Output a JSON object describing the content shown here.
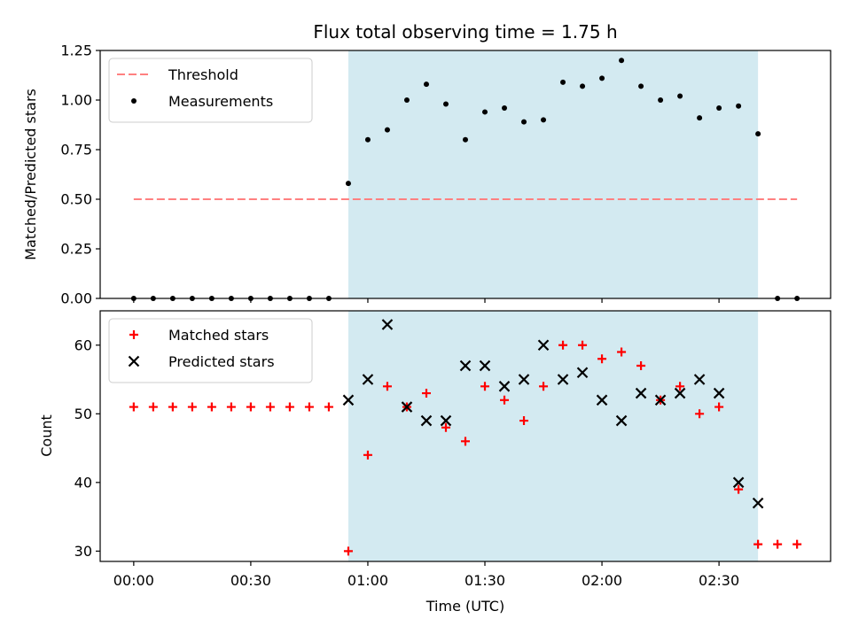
{
  "chart_data": {
    "type": "scatter",
    "title": "Flux total observing time = 1.75 h",
    "xlabel": "Time (UTC)",
    "x_ticks": [
      "00:00",
      "00:30",
      "01:00",
      "01:30",
      "02:00",
      "02:30"
    ],
    "observing_window": [
      "00:55",
      "02:40"
    ],
    "colors": {
      "shade": "#d3eaf1",
      "threshold": "#ff8080",
      "matched": "#ff0000",
      "predicted": "#000000",
      "measurement": "#000000"
    },
    "panels": [
      {
        "ylabel": "Matched/Predicted stars",
        "ylim": [
          0,
          1.25
        ],
        "y_ticks": [
          "0.00",
          "0.25",
          "0.50",
          "0.75",
          "1.00",
          "1.25"
        ],
        "legend_position": "top-left",
        "threshold": {
          "name": "Threshold",
          "value": 0.5,
          "x_range": [
            "00:00",
            "02:50"
          ]
        },
        "series": [
          {
            "name": "Measurements",
            "x": [
              "00:00",
              "00:05",
              "00:10",
              "00:15",
              "00:20",
              "00:25",
              "00:30",
              "00:35",
              "00:40",
              "00:45",
              "00:50",
              "00:55",
              "01:00",
              "01:05",
              "01:10",
              "01:15",
              "01:20",
              "01:25",
              "01:30",
              "01:35",
              "01:40",
              "01:45",
              "01:50",
              "01:55",
              "02:00",
              "02:05",
              "02:10",
              "02:15",
              "02:20",
              "02:25",
              "02:30",
              "02:35",
              "02:40",
              "02:45",
              "02:50"
            ],
            "y": [
              0,
              0,
              0,
              0,
              0,
              0,
              0,
              0,
              0,
              0,
              0,
              0.58,
              0.8,
              0.85,
              1.0,
              1.08,
              0.98,
              0.8,
              0.94,
              0.96,
              0.89,
              0.9,
              1.09,
              1.07,
              1.11,
              1.2,
              1.07,
              1.0,
              1.02,
              0.91,
              0.96,
              0.97,
              0.83,
              0,
              0
            ]
          }
        ]
      },
      {
        "ylabel": "Count",
        "ylim": [
          28.5,
          65
        ],
        "y_ticks": [
          "30",
          "40",
          "50",
          "60"
        ],
        "legend_position": "top-left",
        "series": [
          {
            "name": "Matched stars",
            "x": [
              "00:00",
              "00:05",
              "00:10",
              "00:15",
              "00:20",
              "00:25",
              "00:30",
              "00:35",
              "00:40",
              "00:45",
              "00:50",
              "00:55",
              "01:00",
              "01:05",
              "01:10",
              "01:15",
              "01:20",
              "01:25",
              "01:30",
              "01:35",
              "01:40",
              "01:45",
              "01:50",
              "01:55",
              "02:00",
              "02:05",
              "02:10",
              "02:15",
              "02:20",
              "02:25",
              "02:30",
              "02:35",
              "02:40",
              "02:45",
              "02:50"
            ],
            "y": [
              51,
              51,
              51,
              51,
              51,
              51,
              51,
              51,
              51,
              51,
              51,
              30,
              44,
              54,
              51,
              53,
              48,
              46,
              54,
              52,
              49,
              54,
              60,
              60,
              58,
              59,
              57,
              52,
              54,
              50,
              51,
              39,
              31,
              31,
              31
            ]
          },
          {
            "name": "Predicted stars",
            "x": [
              "00:55",
              "01:00",
              "01:05",
              "01:10",
              "01:15",
              "01:20",
              "01:25",
              "01:30",
              "01:35",
              "01:40",
              "01:45",
              "01:50",
              "01:55",
              "02:00",
              "02:05",
              "02:10",
              "02:15",
              "02:20",
              "02:25",
              "02:30",
              "02:35",
              "02:40"
            ],
            "y": [
              52,
              55,
              63,
              51,
              49,
              49,
              57,
              57,
              54,
              55,
              60,
              55,
              56,
              52,
              49,
              53,
              52,
              53,
              55,
              53,
              40,
              37
            ]
          }
        ]
      }
    ]
  }
}
